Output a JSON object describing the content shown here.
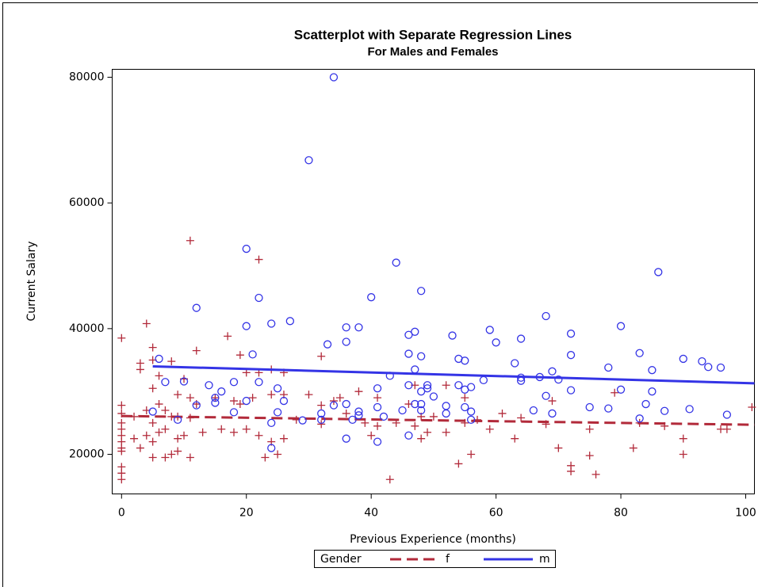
{
  "chart_data": {
    "type": "scatter",
    "title": "Scatterplot with Separate Regression Lines",
    "subtitle": "For Males and Females",
    "x_label": "Previous Experience (months)",
    "y_label": "Current Salary",
    "legend_title": "Gender",
    "legend_position": "bottom",
    "xlim": [
      -1.5,
      101.4
    ],
    "xticks": [
      0,
      20,
      40,
      60,
      80,
      100
    ],
    "ylim": [
      13700,
      81260
    ],
    "yticks": [
      20000,
      40000,
      60000,
      80000
    ],
    "series": [
      {
        "name": "f",
        "color": "#b22a3a",
        "marker": "plus",
        "line_style": "dashed",
        "x": [
          0,
          0,
          0,
          0,
          0,
          0,
          0,
          0,
          0,
          0,
          0,
          0,
          2,
          2,
          3,
          3,
          3,
          4,
          4,
          4,
          5,
          5,
          5,
          5,
          5,
          5,
          6,
          6,
          6,
          7,
          7,
          7,
          8,
          8,
          8,
          9,
          9,
          9,
          9,
          10,
          10,
          11,
          11,
          11,
          11,
          12,
          12,
          13,
          15,
          16,
          17,
          18,
          18,
          19,
          19,
          20,
          20,
          21,
          22,
          22,
          22,
          23,
          24,
          24,
          24,
          25,
          26,
          26,
          26,
          28,
          30,
          32,
          32,
          32,
          34,
          35,
          36,
          38,
          39,
          40,
          41,
          41,
          43,
          44,
          46,
          47,
          47,
          48,
          48,
          49,
          50,
          52,
          52,
          54,
          55,
          55,
          56,
          57,
          59,
          61,
          63,
          64,
          68,
          69,
          70,
          72,
          72,
          75,
          75,
          76,
          79,
          82,
          83,
          87,
          90,
          90,
          96,
          97,
          101
        ],
        "values": [
          38500,
          27800,
          26500,
          25000,
          23000,
          22000,
          21000,
          20500,
          18000,
          17000,
          16000,
          24000,
          26000,
          22500,
          34500,
          33500,
          21000,
          40800,
          27000,
          23000,
          37000,
          35000,
          30500,
          25000,
          22000,
          19500,
          32500,
          28000,
          23500,
          27000,
          24000,
          19500,
          34800,
          26000,
          20000,
          29500,
          26000,
          22500,
          20500,
          32000,
          23000,
          54000,
          29000,
          25800,
          19500,
          36500,
          28000,
          23500,
          29000,
          24000,
          38800,
          28500,
          23500,
          35800,
          28000,
          33000,
          24000,
          29000,
          51000,
          33000,
          23000,
          19500,
          33500,
          29500,
          22000,
          20000,
          33000,
          29500,
          22500,
          25500,
          29500,
          35600,
          27800,
          24800,
          28500,
          29000,
          26500,
          30000,
          25000,
          23000,
          29000,
          24500,
          16000,
          25000,
          28000,
          31000,
          24500,
          22500,
          26000,
          23500,
          26000,
          31000,
          23500,
          18500,
          29000,
          25000,
          20000,
          25500,
          24000,
          26500,
          22500,
          25800,
          24800,
          28500,
          21000,
          18200,
          17300,
          24000,
          19800,
          16800,
          29800,
          21000,
          25000,
          24500,
          22500,
          20000,
          24000,
          24000,
          27500
        ],
        "fit_x": [
          0,
          101.4
        ],
        "fit_values": [
          26100,
          24700
        ]
      },
      {
        "name": "m",
        "color": "#3434e6",
        "marker": "circle",
        "line_style": "solid",
        "x": [
          5,
          6,
          7,
          9,
          10,
          12,
          12,
          14,
          15,
          15,
          16,
          18,
          18,
          20,
          20,
          20,
          21,
          22,
          22,
          24,
          24,
          24,
          25,
          25,
          26,
          27,
          29,
          30,
          32,
          32,
          33,
          34,
          34,
          36,
          36,
          36,
          36,
          37,
          38,
          38,
          38,
          40,
          41,
          41,
          41,
          42,
          43,
          44,
          45,
          46,
          46,
          46,
          46,
          47,
          47,
          47,
          48,
          48,
          48,
          48,
          48,
          49,
          49,
          50,
          52,
          52,
          53,
          54,
          54,
          55,
          55,
          55,
          56,
          56,
          56,
          58,
          59,
          60,
          63,
          64,
          64,
          64,
          66,
          67,
          68,
          68,
          69,
          69,
          70,
          72,
          72,
          72,
          75,
          78,
          78,
          80,
          80,
          83,
          83,
          84,
          85,
          85,
          86,
          87,
          90,
          91,
          93,
          94,
          96,
          97
        ],
        "values": [
          26800,
          35200,
          31500,
          25500,
          31600,
          43300,
          27800,
          31000,
          29000,
          28200,
          30000,
          31500,
          26700,
          52700,
          40400,
          28500,
          35900,
          44900,
          31500,
          40800,
          25000,
          21000,
          30500,
          26700,
          28500,
          41200,
          25400,
          66800,
          26500,
          25500,
          37500,
          80000,
          27800,
          40200,
          37900,
          28000,
          22500,
          25500,
          40200,
          26800,
          26200,
          45000,
          30500,
          27500,
          22000,
          26000,
          32500,
          50500,
          27000,
          39000,
          36000,
          31000,
          23000,
          39500,
          33500,
          28000,
          46000,
          35600,
          30000,
          28000,
          27000,
          31000,
          30500,
          29200,
          27700,
          26500,
          38900,
          35200,
          31000,
          34900,
          30300,
          27500,
          30700,
          26800,
          25500,
          31800,
          39800,
          37800,
          34500,
          38400,
          32200,
          31700,
          27000,
          32300,
          42000,
          29300,
          33200,
          26500,
          31900,
          39200,
          35800,
          30200,
          27500,
          33800,
          27300,
          40400,
          30300,
          36100,
          25700,
          28000,
          33400,
          30000,
          49000,
          26900,
          35200,
          27200,
          34800,
          33900,
          33800,
          26300
        ],
        "fit_x": [
          5,
          101.4
        ],
        "fit_values": [
          34000,
          31300
        ]
      }
    ]
  }
}
